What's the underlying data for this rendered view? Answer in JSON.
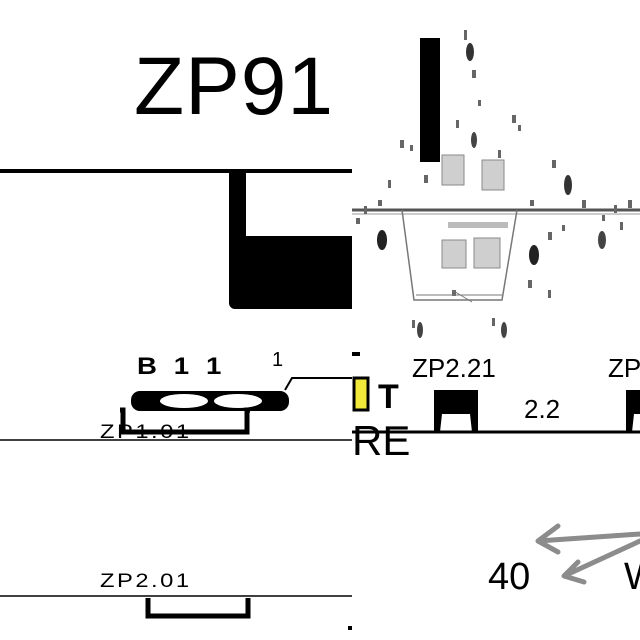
{
  "top_left": {
    "title": "ZP91"
  },
  "lower_left": {
    "label_b": "B 1 1",
    "label_one": "1",
    "label_zp1": "ZP1.01",
    "label_zp2": "ZP2.01"
  },
  "right": {
    "marker_t": "T",
    "label_zp221": "ZP2.21",
    "label_zp_cut": "ZP",
    "label_22": "2.2",
    "label_re": "RE",
    "label_40": "40",
    "label_w": "W"
  },
  "colors": {
    "ink": "#000000",
    "marker_fill": "#f2ea3a",
    "arrow": "#8c8c8c",
    "smudge": "#bdbdbd"
  }
}
